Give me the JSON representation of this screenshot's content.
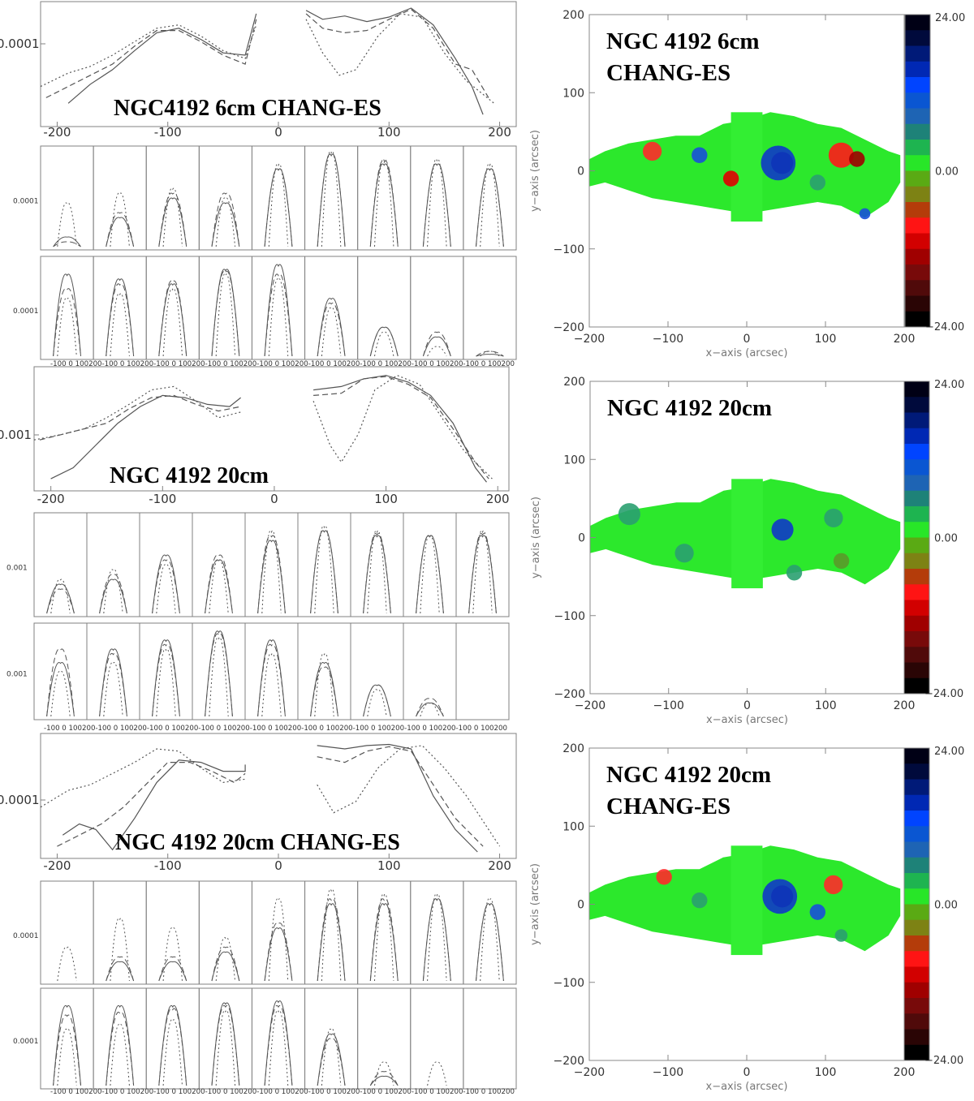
{
  "chart_data": [
    {
      "type": "line",
      "title": "NGC4192 6cm CHANG-ES",
      "xlim": [
        -215,
        215
      ],
      "xticks": [
        "-200",
        "-100",
        "0",
        "100",
        "200"
      ],
      "ytick_label": "0.0001",
      "small_ytick_label": "0.0001",
      "small_xtick_labels": "-100 0 100200-100 0 100200-100 0 100200-100 0 100200-100 0 100200-100 0 100200-100 0 100200-100 0 100200-100 0 100200",
      "series_styles": [
        "solid",
        "dashed",
        "dotted"
      ],
      "series": [
        {
          "x": [
            -190,
            -170,
            -150,
            -130,
            -110,
            -90,
            -70,
            -50,
            -30,
            -20
          ],
          "values": [
            0.15,
            0.32,
            0.45,
            0.62,
            0.78,
            0.82,
            0.72,
            0.6,
            0.58,
            0.95
          ]
        },
        {
          "x": [
            -210,
            -190,
            -170,
            -150,
            -130,
            -110,
            -90,
            -70,
            -50,
            -30,
            -20
          ],
          "values": [
            0.2,
            0.3,
            0.4,
            0.5,
            0.66,
            0.8,
            0.8,
            0.7,
            0.58,
            0.5,
            0.9
          ]
        },
        {
          "x": [
            -215,
            -190,
            -170,
            -150,
            -130,
            -110,
            -90,
            -70,
            -50,
            -30,
            -20
          ],
          "values": [
            0.3,
            0.42,
            0.48,
            0.58,
            0.7,
            0.82,
            0.85,
            0.75,
            0.62,
            0.55,
            0.85
          ]
        },
        {
          "x": [
            25,
            40,
            60,
            80,
            100,
            120,
            140,
            160,
            175,
            185
          ],
          "values": [
            0.98,
            0.9,
            0.93,
            0.88,
            0.92,
            1.0,
            0.85,
            0.55,
            0.3,
            0.05
          ]
        },
        {
          "x": [
            25,
            40,
            60,
            80,
            100,
            120,
            140,
            160,
            175,
            190
          ],
          "values": [
            0.95,
            0.82,
            0.78,
            0.8,
            0.9,
            0.99,
            0.82,
            0.5,
            0.45,
            0.2
          ]
        },
        {
          "x": [
            25,
            40,
            55,
            70,
            90,
            110,
            130,
            150,
            170,
            195
          ],
          "values": [
            0.9,
            0.6,
            0.4,
            0.45,
            0.75,
            0.95,
            0.92,
            0.6,
            0.35,
            0.15
          ]
        }
      ],
      "small_panels": [
        {
          "row": 0,
          "heights": [
            [
              0.1,
              0.05,
              0.45
            ],
            [
              0.3,
              0.35,
              0.55
            ],
            [
              0.5,
              0.55,
              0.6
            ],
            [
              0.45,
              0.55,
              0.5
            ],
            [
              0.8,
              0.8,
              0.85
            ],
            [
              0.95,
              0.95,
              0.98
            ],
            [
              0.85,
              0.88,
              0.9
            ],
            [
              0.85,
              0.85,
              0.9
            ],
            [
              0.8,
              0.8,
              0.85
            ]
          ]
        },
        {
          "row": 1,
          "heights": [
            [
              0.85,
              0.7,
              0.6
            ],
            [
              0.8,
              0.75,
              0.65
            ],
            [
              0.75,
              0.78,
              0.7
            ],
            [
              0.9,
              0.88,
              0.85
            ],
            [
              0.95,
              0.85,
              0.8
            ],
            [
              0.6,
              0.55,
              0.5
            ],
            [
              0.3,
              0.3,
              0.25
            ],
            [
              0.2,
              0.25,
              0.1
            ],
            [
              0.02,
              0.05,
              0.05
            ]
          ]
        }
      ]
    },
    {
      "type": "heatmap",
      "title_lines": [
        "NGC 4192 6cm",
        "CHANG-ES"
      ],
      "xlabel": "x−axis (arcsec)",
      "ylabel": "y−axis (arcsec)",
      "xlim": [
        -200,
        200
      ],
      "ylim": [
        -200,
        200
      ],
      "xticks": [
        "−200",
        "−100",
        "0",
        "100",
        "200"
      ],
      "yticks": [
        "200",
        "100",
        "0",
        "−100",
        "−200"
      ],
      "colorbar": {
        "max": "24.00",
        "mid": "0.00",
        "min": "−24.00"
      },
      "blobs": [
        {
          "x": 45,
          "y": 10,
          "r": 14,
          "color": "#000e2a"
        },
        {
          "x": 40,
          "y": 10,
          "r": 22,
          "color": "#1038c8"
        },
        {
          "x": 120,
          "y": 20,
          "r": 16,
          "color": "#ff1a1a"
        },
        {
          "x": 140,
          "y": 15,
          "r": 10,
          "color": "#a00000"
        },
        {
          "x": -120,
          "y": 25,
          "r": 12,
          "color": "#ff2a2a"
        },
        {
          "x": -60,
          "y": 20,
          "r": 10,
          "color": "#1850d8"
        },
        {
          "x": -20,
          "y": -10,
          "r": 10,
          "color": "#e00000"
        },
        {
          "x": 90,
          "y": -15,
          "r": 10,
          "color": "#2aa070"
        },
        {
          "x": 150,
          "y": -55,
          "r": 7,
          "color": "#1850d8"
        }
      ]
    },
    {
      "type": "line",
      "title": "NGC 4192 20cm",
      "xlim": [
        -215,
        210
      ],
      "xticks": [
        "-200",
        "-100",
        "0",
        "100",
        "200"
      ],
      "ytick_label": "0.001",
      "small_ytick_label": "0.001",
      "small_xtick_labels": "-100 0 100200-100 0 100200-100 0 100200-100 0 100200-100 0 100200-100 0 100200-100 0 100200-100 0 100200-100 0 100200",
      "series_styles": [
        "solid",
        "dashed",
        "dotted"
      ],
      "series": [
        {
          "x": [
            -200,
            -180,
            -160,
            -140,
            -120,
            -100,
            -80,
            -60,
            -40,
            -30
          ],
          "values": [
            0.05,
            0.15,
            0.35,
            0.55,
            0.7,
            0.8,
            0.78,
            0.72,
            0.7,
            0.78
          ]
        },
        {
          "x": [
            -210,
            -190,
            -170,
            -150,
            -130,
            -110,
            -90,
            -70,
            -50,
            -30
          ],
          "values": [
            0.4,
            0.45,
            0.5,
            0.55,
            0.68,
            0.78,
            0.8,
            0.72,
            0.66,
            0.7
          ]
        },
        {
          "x": [
            -215,
            -190,
            -170,
            -150,
            -130,
            -110,
            -90,
            -70,
            -50,
            -30
          ],
          "values": [
            0.4,
            0.45,
            0.5,
            0.6,
            0.72,
            0.85,
            0.88,
            0.75,
            0.6,
            0.65
          ]
        },
        {
          "x": [
            35,
            60,
            80,
            100,
            120,
            140,
            160,
            180,
            190
          ],
          "values": [
            0.85,
            0.88,
            0.95,
            0.98,
            0.92,
            0.8,
            0.55,
            0.15,
            0.02
          ]
        },
        {
          "x": [
            35,
            60,
            80,
            100,
            120,
            140,
            160,
            180,
            192
          ],
          "values": [
            0.8,
            0.82,
            0.95,
            0.97,
            0.9,
            0.78,
            0.5,
            0.2,
            0.05
          ]
        },
        {
          "x": [
            35,
            50,
            60,
            75,
            90,
            110,
            130,
            150,
            170,
            195
          ],
          "values": [
            0.75,
            0.35,
            0.2,
            0.45,
            0.85,
            0.98,
            0.9,
            0.6,
            0.3,
            0.05
          ]
        }
      ],
      "small_panels": [
        {
          "row": 0,
          "heights": [
            [
              0.3,
              0.25,
              0.35
            ],
            [
              0.35,
              0.4,
              0.45
            ],
            [
              0.6,
              0.55,
              0.5
            ],
            [
              0.55,
              0.6,
              0.55
            ],
            [
              0.75,
              0.8,
              0.85
            ],
            [
              0.85,
              0.85,
              0.9
            ],
            [
              0.8,
              0.82,
              0.85
            ],
            [
              0.8,
              0.8,
              0.8
            ],
            [
              0.8,
              0.82,
              0.85
            ]
          ]
        },
        {
          "row": 1,
          "heights": [
            [
              0.6,
              0.75,
              0.5
            ],
            [
              0.75,
              0.7,
              0.6
            ],
            [
              0.85,
              0.8,
              0.75
            ],
            [
              0.95,
              0.92,
              0.88
            ],
            [
              0.85,
              0.8,
              0.7
            ],
            [
              0.6,
              0.55,
              0.7
            ],
            [
              0.35,
              0.35,
              0.3
            ],
            [
              0.15,
              0.2,
              0.15
            ],
            [
              0.0,
              0.0,
              0.0
            ]
          ]
        }
      ]
    },
    {
      "type": "heatmap",
      "title_lines": [
        "NGC 4192 20cm"
      ],
      "xlabel": "x−axis (arcsec)",
      "ylabel": "y−axis (arcsec)",
      "xlim": [
        -200,
        200
      ],
      "ylim": [
        -200,
        200
      ],
      "xticks": [
        "−200",
        "−100",
        "0",
        "100",
        "200"
      ],
      "yticks": [
        "200",
        "100",
        "0",
        "−100",
        "−200"
      ],
      "colorbar": {
        "max": "24.00",
        "mid": "0.00",
        "min": "−24.00"
      },
      "blobs": [
        {
          "x": 45,
          "y": 10,
          "r": 14,
          "color": "#1038c8"
        },
        {
          "x": 110,
          "y": 25,
          "r": 12,
          "color": "#2aa070"
        },
        {
          "x": -150,
          "y": 30,
          "r": 14,
          "color": "#2aa070"
        },
        {
          "x": -80,
          "y": -20,
          "r": 12,
          "color": "#2aa070"
        },
        {
          "x": 120,
          "y": -30,
          "r": 10,
          "color": "#5a9a2a"
        },
        {
          "x": 60,
          "y": -45,
          "r": 10,
          "color": "#2aa070"
        }
      ]
    },
    {
      "type": "line",
      "title": "NGC 4192 20cm CHANG-ES",
      "xlim": [
        -215,
        215
      ],
      "xticks": [
        "-200",
        "-100",
        "0",
        "100",
        "200"
      ],
      "ytick_label": "0.0001",
      "small_ytick_label": "0.0001",
      "small_xtick_labels": "-100 0 100200-100 0 100200-100 0 100200-100 0 100200-100 0 100200-100 0 100200-100 0 100200-100 0 100200-100 0 100200",
      "series_styles": [
        "solid",
        "dashed",
        "dotted"
      ],
      "series": [
        {
          "x": [
            -195,
            -180,
            -165,
            -150,
            -130,
            -110,
            -90,
            -70,
            -50,
            -30,
            -30
          ],
          "values": [
            0.15,
            0.25,
            0.2,
            0.02,
            0.3,
            0.62,
            0.82,
            0.8,
            0.72,
            0.72,
            0.78
          ]
        },
        {
          "x": [
            -200,
            -180,
            -160,
            -140,
            -120,
            -100,
            -80,
            -60,
            -40,
            -30
          ],
          "values": [
            0.05,
            0.15,
            0.25,
            0.4,
            0.6,
            0.8,
            0.8,
            0.72,
            0.62,
            0.7
          ]
        },
        {
          "x": [
            -215,
            -190,
            -170,
            -150,
            -130,
            -110,
            -90,
            -70,
            -50,
            -30
          ],
          "values": [
            0.4,
            0.55,
            0.6,
            0.7,
            0.8,
            0.92,
            0.9,
            0.75,
            0.62,
            0.65
          ]
        },
        {
          "x": [
            35,
            60,
            80,
            100,
            120,
            140,
            160,
            180
          ],
          "values": [
            0.95,
            0.92,
            0.95,
            0.96,
            0.92,
            0.5,
            0.2,
            0.0
          ]
        },
        {
          "x": [
            35,
            60,
            80,
            100,
            120,
            140,
            160,
            185
          ],
          "values": [
            0.85,
            0.8,
            0.9,
            0.94,
            0.9,
            0.6,
            0.3,
            0.05
          ]
        },
        {
          "x": [
            35,
            50,
            70,
            90,
            110,
            130,
            150,
            170,
            200
          ],
          "values": [
            0.6,
            0.35,
            0.45,
            0.75,
            0.92,
            0.95,
            0.75,
            0.5,
            0.05
          ]
        }
      ],
      "small_panels": [
        {
          "row": 0,
          "heights": [
            [
              0.0,
              0.0,
              0.35
            ],
            [
              0.2,
              0.25,
              0.65
            ],
            [
              0.2,
              0.25,
              0.55
            ],
            [
              0.3,
              0.35,
              0.45
            ],
            [
              0.55,
              0.6,
              0.85
            ],
            [
              0.8,
              0.85,
              0.95
            ],
            [
              0.8,
              0.85,
              0.9
            ],
            [
              0.85,
              0.85,
              0.9
            ],
            [
              0.8,
              0.8,
              0.85
            ]
          ]
        },
        {
          "row": 1,
          "heights": [
            [
              0.85,
              0.75,
              0.6
            ],
            [
              0.85,
              0.78,
              0.65
            ],
            [
              0.85,
              0.82,
              0.7
            ],
            [
              0.88,
              0.85,
              0.8
            ],
            [
              0.9,
              0.85,
              0.8
            ],
            [
              0.55,
              0.5,
              0.6
            ],
            [
              0.1,
              0.15,
              0.25
            ],
            [
              0.0,
              0.0,
              0.25
            ],
            [
              0.0,
              0.0,
              0.0
            ]
          ]
        }
      ]
    },
    {
      "type": "heatmap",
      "title_lines": [
        "NGC 4192 20cm",
        "CHANG-ES"
      ],
      "xlabel": "x−axis (arcsec)",
      "ylabel": "y−axis (arcsec)",
      "xlim": [
        -200,
        200
      ],
      "ylim": [
        -200,
        200
      ],
      "xticks": [
        "−200",
        "−100",
        "0",
        "100",
        "200"
      ],
      "yticks": [
        "200",
        "100",
        "0",
        "−100",
        "−200"
      ],
      "colorbar": {
        "max": "24.00",
        "mid": "0.00",
        "min": "−24.00"
      },
      "blobs": [
        {
          "x": 45,
          "y": 10,
          "r": 14,
          "color": "#000e2a"
        },
        {
          "x": 42,
          "y": 10,
          "r": 22,
          "color": "#1038c8"
        },
        {
          "x": 110,
          "y": 25,
          "r": 12,
          "color": "#ff2a2a"
        },
        {
          "x": -105,
          "y": 35,
          "r": 10,
          "color": "#ff2a2a"
        },
        {
          "x": 90,
          "y": -10,
          "r": 10,
          "color": "#1850d8"
        },
        {
          "x": -60,
          "y": 5,
          "r": 10,
          "color": "#2aa070"
        },
        {
          "x": 120,
          "y": -40,
          "r": 8,
          "color": "#2aa070"
        }
      ]
    }
  ],
  "colors": {
    "grid": "#b9b9b9",
    "axis": "#808080",
    "line": "#555555",
    "heatmap_base": "#2ce82c",
    "colorbar": [
      "#000015",
      "#000a3c",
      "#001a78",
      "#0028b4",
      "#0044ff",
      "#0a56d2",
      "#1e64b4",
      "#1e8278",
      "#1eb450",
      "#28e628",
      "#5aaa14",
      "#7d8214",
      "#b43c0a",
      "#ff1414",
      "#d20000",
      "#a00000",
      "#780a0a",
      "#500a0a",
      "#2a0505",
      "#000000"
    ]
  }
}
